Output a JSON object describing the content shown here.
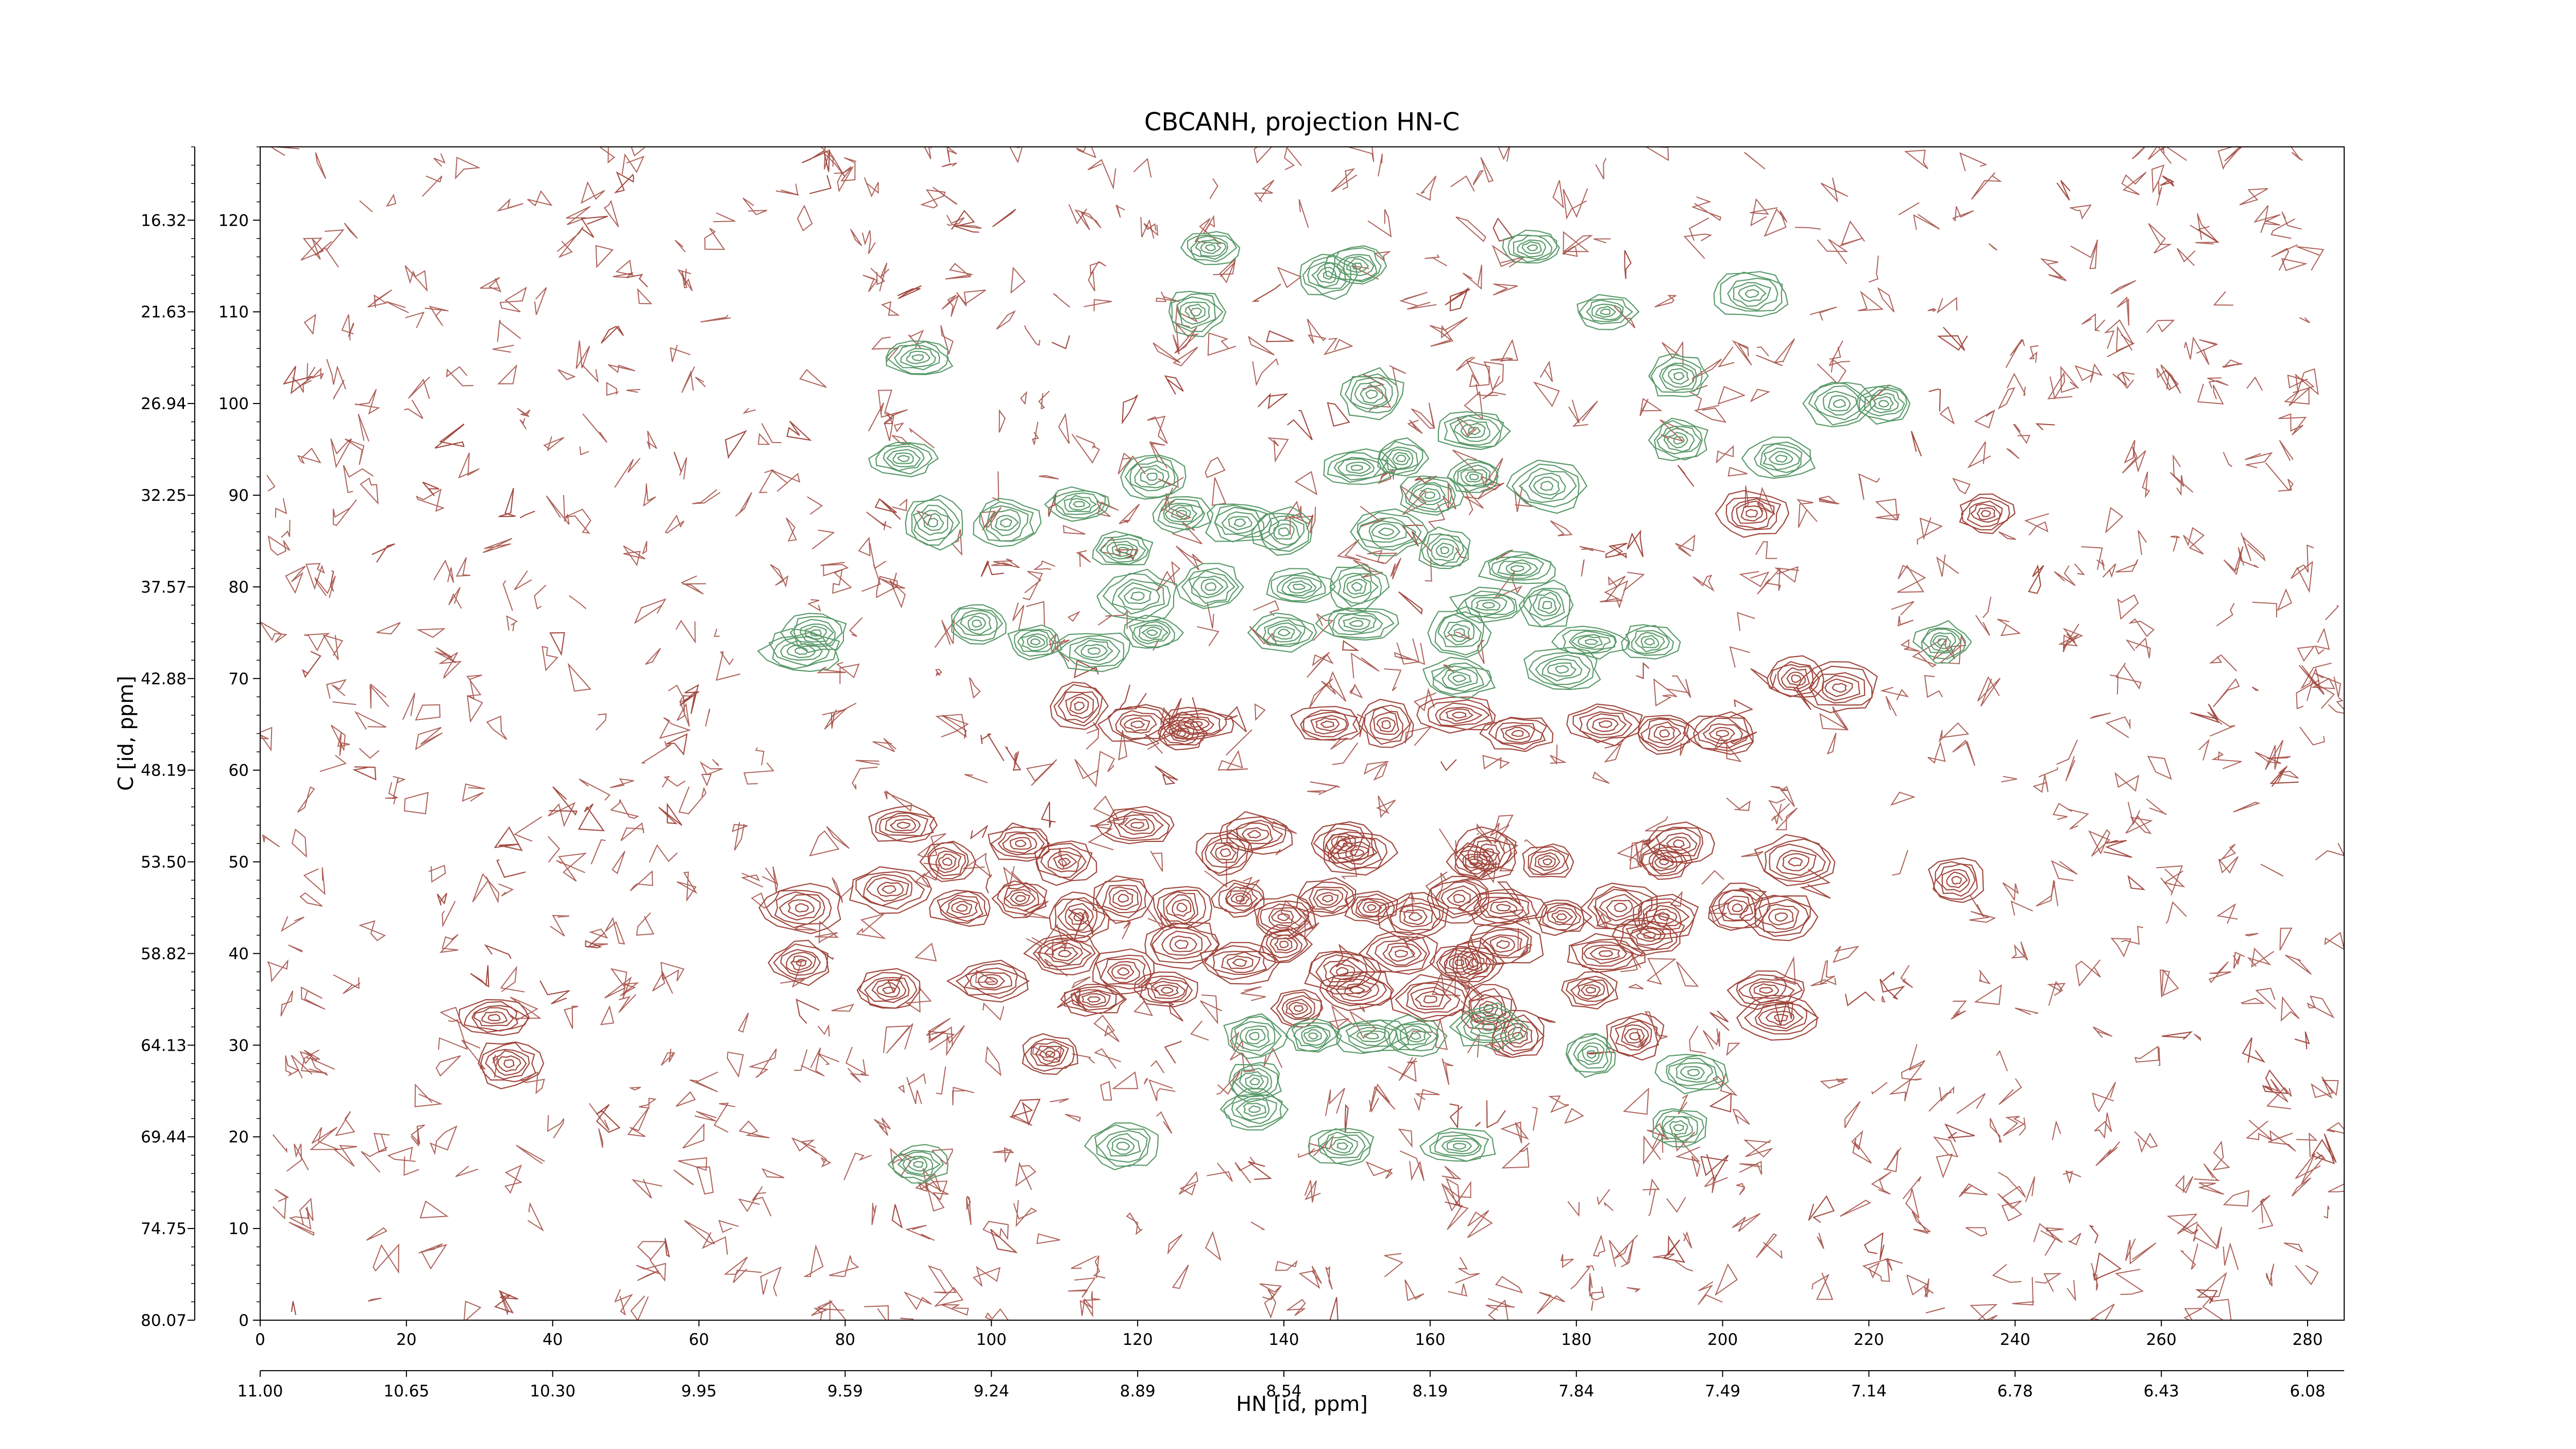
{
  "chart_data": {
    "type": "contour",
    "title": "CBCANH, projection HN-C",
    "xlabel": "HN [id, ppm]",
    "ylabel": "C [id, ppm]",
    "x_index_range": [
      0,
      285
    ],
    "y_index_range": [
      0,
      128
    ],
    "x_index_ticks": [
      "0",
      "20",
      "40",
      "60",
      "80",
      "100",
      "120",
      "140",
      "160",
      "180",
      "200",
      "220",
      "240",
      "260",
      "280"
    ],
    "x_ppm_ticks": [
      "11.00",
      "10.65",
      "10.30",
      "9.95",
      "9.59",
      "9.24",
      "8.89",
      "8.54",
      "8.19",
      "7.84",
      "7.49",
      "7.14",
      "6.78",
      "6.43",
      "6.08"
    ],
    "y_index_ticks": [
      "0",
      "10",
      "20",
      "30",
      "40",
      "50",
      "60",
      "70",
      "80",
      "90",
      "100",
      "110",
      "120"
    ],
    "y_ppm_ticks": [
      "80.07",
      "74.75",
      "69.44",
      "64.13",
      "58.82",
      "53.50",
      "48.19",
      "42.88",
      "37.57",
      "32.25",
      "26.94",
      "21.63",
      "16.32"
    ],
    "series": [
      {
        "color": "#a0473d",
        "peaks": [
          [
            74,
            45
          ],
          [
            86,
            47
          ],
          [
            96,
            45
          ],
          [
            104,
            46
          ],
          [
            112,
            44
          ],
          [
            118,
            46
          ],
          [
            126,
            45
          ],
          [
            134,
            46
          ],
          [
            140,
            44
          ],
          [
            146,
            46
          ],
          [
            152,
            45
          ],
          [
            158,
            44
          ],
          [
            164,
            46
          ],
          [
            170,
            45
          ],
          [
            178,
            44
          ],
          [
            186,
            45
          ],
          [
            192,
            44
          ],
          [
            202,
            45
          ],
          [
            208,
            44
          ],
          [
            110,
            40
          ],
          [
            118,
            38
          ],
          [
            126,
            41
          ],
          [
            134,
            39
          ],
          [
            140,
            41
          ],
          [
            148,
            38
          ],
          [
            156,
            40
          ],
          [
            164,
            39
          ],
          [
            170,
            41
          ],
          [
            184,
            40
          ],
          [
            190,
            42
          ],
          [
            86,
            36
          ],
          [
            100,
            37
          ],
          [
            114,
            35
          ],
          [
            124,
            36
          ],
          [
            142,
            34
          ],
          [
            150,
            36
          ],
          [
            160,
            35
          ],
          [
            168,
            34
          ],
          [
            182,
            36
          ],
          [
            206,
            36
          ],
          [
            208,
            33
          ],
          [
            94,
            50
          ],
          [
            110,
            50
          ],
          [
            132,
            51
          ],
          [
            150,
            51
          ],
          [
            166,
            50
          ],
          [
            176,
            50
          ],
          [
            192,
            50
          ],
          [
            210,
            50
          ],
          [
            88,
            54
          ],
          [
            104,
            52
          ],
          [
            120,
            54
          ],
          [
            136,
            53
          ],
          [
            148,
            52
          ],
          [
            168,
            51
          ],
          [
            194,
            52
          ],
          [
            112,
            67
          ],
          [
            120,
            65
          ],
          [
            126,
            64
          ],
          [
            128,
            65
          ],
          [
            146,
            65
          ],
          [
            154,
            65
          ],
          [
            164,
            66
          ],
          [
            172,
            64
          ],
          [
            184,
            65
          ],
          [
            192,
            64
          ],
          [
            210,
            70
          ],
          [
            216,
            69
          ],
          [
            232,
            48
          ],
          [
            166,
            39
          ],
          [
            200,
            64
          ],
          [
            188,
            31
          ],
          [
            172,
            31
          ],
          [
            108,
            29
          ],
          [
            34,
            28
          ],
          [
            32,
            33
          ],
          [
            74,
            39
          ],
          [
            204,
            88
          ],
          [
            236,
            88
          ]
        ]
      },
      {
        "color": "#5a9a6a",
        "peaks": [
          [
            98,
            76
          ],
          [
            106,
            74
          ],
          [
            114,
            73
          ],
          [
            122,
            75
          ],
          [
            120,
            79
          ],
          [
            118,
            84
          ],
          [
            126,
            88
          ],
          [
            134,
            87
          ],
          [
            140,
            86
          ],
          [
            154,
            86
          ],
          [
            160,
            90
          ],
          [
            166,
            92
          ],
          [
            176,
            91
          ],
          [
            162,
            84
          ],
          [
            172,
            82
          ],
          [
            130,
            80
          ],
          [
            142,
            80
          ],
          [
            150,
            80
          ],
          [
            168,
            78
          ],
          [
            176,
            78
          ],
          [
            140,
            75
          ],
          [
            150,
            76
          ],
          [
            164,
            75
          ],
          [
            182,
            74
          ],
          [
            190,
            74
          ],
          [
            92,
            87
          ],
          [
            102,
            87
          ],
          [
            112,
            89
          ],
          [
            122,
            92
          ],
          [
            150,
            93
          ],
          [
            156,
            94
          ],
          [
            166,
            97
          ],
          [
            208,
            94
          ],
          [
            216,
            100
          ],
          [
            222,
            100
          ],
          [
            194,
            96
          ],
          [
            184,
            110
          ],
          [
            194,
            103
          ],
          [
            204,
            112
          ],
          [
            88,
            94
          ],
          [
            90,
            105
          ],
          [
            130,
            117
          ],
          [
            146,
            114
          ],
          [
            174,
            117
          ],
          [
            150,
            115
          ],
          [
            128,
            110
          ],
          [
            152,
            101
          ],
          [
            136,
            26
          ],
          [
            136,
            31
          ],
          [
            144,
            31
          ],
          [
            152,
            31
          ],
          [
            158,
            31
          ],
          [
            168,
            32
          ],
          [
            182,
            29
          ],
          [
            196,
            27
          ],
          [
            194,
            21
          ],
          [
            136,
            23
          ],
          [
            148,
            19
          ],
          [
            164,
            19
          ],
          [
            118,
            19
          ],
          [
            90,
            17
          ],
          [
            74,
            73
          ],
          [
            76,
            75
          ],
          [
            230,
            74
          ],
          [
            178,
            71
          ],
          [
            164,
            70
          ]
        ]
      }
    ]
  }
}
